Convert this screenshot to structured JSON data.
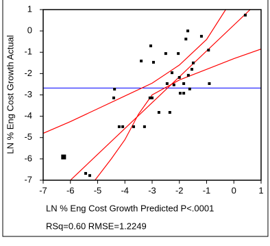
{
  "chart_data": {
    "type": "scatter",
    "x_label": "LN % Eng Cost Growth Predicted P<.0001",
    "y_label": "LN % Eng Cost Growth Actual",
    "summary": "RSq=0.60 RMSE=1.2249",
    "xlim": [
      -7,
      1
    ],
    "ylim": [
      -7,
      1
    ],
    "xticks": [
      -7,
      -6,
      -5,
      -4,
      -3,
      -2,
      -1,
      0,
      1
    ],
    "yticks": [
      -7,
      -6,
      -5,
      -4,
      -3,
      -2,
      -1,
      0,
      1
    ],
    "point_color": "#000000",
    "x": [
      0.42,
      -1.69,
      -1.19,
      -1.76,
      -3.05,
      -0.93,
      -2.5,
      -2.04,
      -2.95,
      -3.4,
      -1.49,
      -1.54,
      -2.27,
      -1.67,
      -2.0,
      -2.45,
      -0.9,
      -2.2,
      -1.84,
      -1.62,
      -4.38,
      -4.41,
      -3.0,
      -3.08,
      -1.97,
      -1.84,
      -2.75,
      -2.35,
      -3.28,
      -3.68,
      -4.21,
      -4.08,
      -6.25,
      -5.44,
      -5.29
    ],
    "y": [
      0.74,
      0.0,
      -0.25,
      -0.38,
      -0.7,
      -0.9,
      -1.06,
      -1.06,
      -1.47,
      -1.41,
      -1.5,
      -1.8,
      -1.96,
      -2.08,
      -2.18,
      -2.47,
      -2.47,
      -2.53,
      -2.47,
      -2.72,
      -2.73,
      -3.14,
      -3.14,
      -3.14,
      -2.92,
      -2.92,
      -3.82,
      -3.82,
      -4.49,
      -4.49,
      -4.49,
      -4.49,
      -5.91,
      -6.68,
      -6.78
    ],
    "point_sizes": [
      4,
      4,
      4,
      4,
      4,
      4,
      4,
      4,
      4,
      4,
      4,
      4,
      4,
      4,
      4,
      4,
      4,
      4,
      4,
      4,
      4,
      4,
      4,
      4,
      4,
      4,
      4,
      4,
      4,
      4,
      4,
      4,
      7,
      4,
      4
    ],
    "mean_line": {
      "y": -2.68,
      "color": "#0000ff"
    },
    "fit_color": "#ff0000",
    "fit_line": {
      "x": [
        -6.0,
        0.6
      ],
      "y": [
        -7,
        1
      ]
    },
    "upper_band": {
      "x": [
        -7,
        -6,
        -5,
        -4,
        -3,
        -2,
        -1,
        -0.3
      ],
      "y": [
        -4.8,
        -4.25,
        -3.65,
        -3.05,
        -2.45,
        -1.6,
        -0.4,
        1
      ]
    },
    "lower_band": {
      "x": [
        -5.1,
        -4.5,
        -4,
        -3.5,
        -3,
        -2,
        -1,
        0,
        1
      ],
      "y": [
        -7,
        -6.0,
        -5.1,
        -3.9,
        -3.0,
        -2.3,
        -1.8,
        -1.3,
        -0.85
      ]
    }
  }
}
